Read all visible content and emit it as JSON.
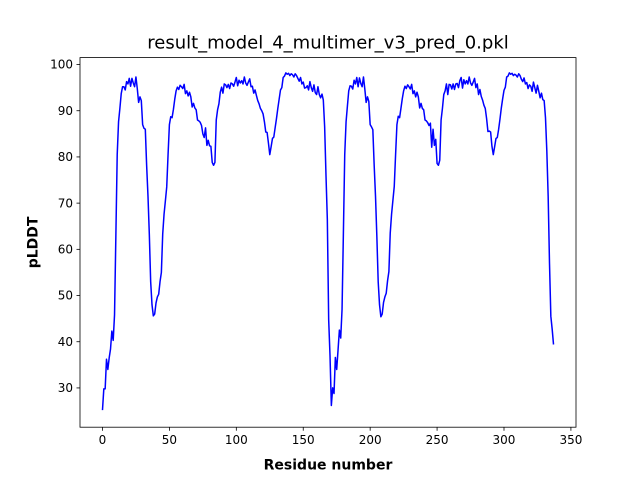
{
  "chart_data": {
    "type": "line",
    "title": "result_model_4_multimer_v3_pred_0.pkl",
    "xlabel": "Residue number",
    "ylabel": "pLDDT",
    "xlim": [
      -16.8,
      353.8
    ],
    "ylim": [
      21.5,
      101.5
    ],
    "xticks": [
      0,
      50,
      100,
      150,
      200,
      250,
      300,
      350
    ],
    "yticks": [
      30,
      40,
      50,
      60,
      70,
      80,
      90,
      100
    ],
    "grid": false,
    "legend": "none",
    "color": "#0000ff",
    "series": [
      {
        "x": [
          0,
          1,
          2,
          3,
          4,
          5,
          6,
          7,
          8,
          9,
          10,
          11,
          12,
          13,
          14,
          15,
          16,
          17,
          18,
          19,
          20,
          21,
          22,
          23,
          24,
          25,
          26,
          27,
          28,
          29,
          30,
          31,
          32,
          33,
          34,
          35,
          36,
          37,
          38,
          39,
          40,
          41,
          42,
          43,
          44,
          45,
          46,
          47,
          48,
          49,
          50,
          51,
          52,
          53,
          54,
          55,
          56,
          57,
          58,
          59,
          60,
          61,
          62,
          63,
          64,
          65,
          66,
          67,
          68,
          69,
          70,
          71,
          72,
          73,
          74,
          75,
          76,
          77,
          78,
          79,
          80,
          81,
          82,
          83,
          84,
          85,
          86,
          87,
          88,
          89,
          90,
          91,
          92,
          93,
          94,
          95,
          96,
          97,
          98,
          99,
          100,
          101,
          102,
          103,
          104,
          105,
          106,
          107,
          108,
          109,
          110,
          111,
          112,
          113,
          114,
          115,
          116,
          117,
          118,
          119,
          120,
          121,
          122,
          123,
          124,
          125,
          126,
          127,
          128,
          129,
          130,
          131,
          132,
          133,
          134,
          135,
          136,
          137,
          138,
          139,
          140,
          141,
          142,
          143,
          144,
          145,
          146,
          147,
          148,
          149,
          150,
          151,
          152,
          153,
          154,
          155,
          156,
          157,
          158,
          159,
          160,
          161,
          162,
          163,
          164,
          165,
          166,
          167,
          168,
          169,
          170,
          171,
          172,
          173,
          174,
          175,
          176,
          177,
          178,
          179,
          180,
          181,
          182,
          183,
          184,
          185,
          186,
          187,
          188,
          189,
          190,
          191,
          192,
          193,
          194,
          195,
          196,
          197,
          198,
          199,
          200,
          201,
          202,
          203,
          204,
          205,
          206,
          207,
          208,
          209,
          210,
          211,
          212,
          213,
          214,
          215,
          216,
          217,
          218,
          219,
          220,
          221,
          222,
          223,
          224,
          225,
          226,
          227,
          228,
          229,
          230,
          231,
          232,
          233,
          234,
          235,
          236,
          237,
          238,
          239,
          240,
          241,
          242,
          243,
          244,
          245,
          246,
          247,
          248,
          249,
          250,
          251,
          252,
          253,
          254,
          255,
          256,
          257,
          258,
          259,
          260,
          261,
          262,
          263,
          264,
          265,
          266,
          267,
          268,
          269,
          270,
          271,
          272,
          273,
          274,
          275,
          276,
          277,
          278,
          279,
          280,
          281,
          282,
          283,
          284,
          285,
          286,
          287,
          288,
          289,
          290,
          291,
          292,
          293,
          294,
          295,
          296,
          297,
          298,
          299,
          300,
          301,
          302,
          303,
          304,
          305,
          306,
          307,
          308,
          309,
          310,
          311,
          312,
          313,
          314,
          315,
          316,
          317,
          318,
          319,
          320,
          321,
          322,
          323,
          324,
          325,
          326,
          327,
          328,
          329,
          330,
          331,
          332,
          333,
          334,
          335,
          336,
          337
        ],
        "values": [
          25.2,
          29.8,
          29.8,
          36.2,
          34.0,
          36.5,
          38.4,
          42.3,
          40.3,
          45.8,
          63.0,
          80.5,
          87.6,
          90.5,
          93.7,
          95.2,
          95.2,
          94.5,
          96.3,
          95.8,
          97.0,
          95.3,
          97.0,
          96.0,
          95.2,
          97.3,
          94.8,
          91.8,
          93.0,
          92.2,
          87.0,
          86.2,
          86.0,
          78.1,
          71.5,
          63.2,
          53.0,
          48.0,
          45.6,
          46.0,
          48.4,
          49.7,
          50.3,
          53.0,
          55.0,
          63.3,
          67.6,
          70.5,
          73.5,
          80.5,
          87.0,
          88.7,
          88.5,
          90.3,
          92.5,
          94.3,
          95.1,
          94.6,
          95.5,
          95.2,
          94.8,
          95.7,
          93.7,
          94.3,
          93.2,
          94.0,
          93.0,
          90.8,
          91.6,
          90.6,
          90.2,
          88.0,
          87.8,
          87.5,
          86.8,
          85.0,
          84.2,
          86.3,
          82.5,
          83.6,
          82.4,
          82.3,
          78.8,
          78.2,
          78.8,
          88.0,
          90.2,
          91.5,
          94.0,
          95.1,
          93.8,
          95.8,
          95.6,
          95.0,
          95.7,
          94.8,
          96.0,
          95.8,
          95.3,
          96.2,
          97.2,
          95.4,
          96.6,
          96.0,
          96.5,
          95.8,
          97.3,
          96.0,
          95.5,
          96.2,
          96.9,
          95.2,
          95.3,
          93.8,
          94.5,
          93.3,
          92.2,
          91.5,
          90.5,
          90.0,
          89.3,
          87.6,
          85.4,
          85.3,
          83.0,
          80.5,
          82.2,
          84.0,
          84.3,
          86.3,
          88.3,
          90.5,
          92.5,
          94.5,
          95.0,
          97.2,
          97.5,
          98.2,
          97.9,
          98.1,
          97.6,
          98.0,
          97.8,
          97.3,
          98.0,
          97.6,
          97.0,
          96.4,
          97.2,
          95.8,
          96.2,
          94.9,
          95.0,
          95.4,
          94.5,
          96.3,
          95.0,
          94.2,
          95.6,
          93.9,
          93.5,
          95.2,
          93.5,
          92.8,
          93.6,
          92.3,
          86.5,
          76.0,
          66.5,
          44.8,
          37.0,
          26.2,
          30.0,
          28.8,
          36.6,
          34.0,
          38.2,
          42.5,
          40.8,
          47.0,
          63.5,
          80.5,
          87.6,
          91.0,
          94.3,
          95.4,
          95.3,
          94.7,
          96.6,
          95.8,
          97.2,
          95.2,
          97.1,
          95.9,
          95.2,
          97.3,
          94.7,
          91.8,
          93.0,
          92.0,
          87.0,
          86.5,
          85.9,
          78.2,
          71.5,
          62.8,
          53.0,
          48.0,
          45.4,
          46.0,
          48.5,
          49.7,
          50.5,
          53.2,
          55.2,
          63.5,
          67.6,
          70.6,
          73.6,
          80.5,
          87.0,
          88.8,
          88.5,
          90.5,
          92.6,
          94.3,
          95.3,
          94.8,
          95.6,
          95.2,
          94.7,
          95.7,
          93.7,
          94.3,
          93.0,
          94.0,
          93.0,
          90.6,
          91.6,
          90.5,
          90.2,
          88.0,
          87.8,
          87.4,
          86.8,
          87.3,
          82.1,
          86.0,
          82.5,
          83.8,
          78.6,
          78.2,
          79.3,
          88.0,
          90.5,
          93.5,
          94.3,
          95.8,
          93.5,
          95.7,
          95.6,
          94.7,
          95.8,
          94.6,
          95.8,
          95.9,
          95.0,
          96.5,
          97.2,
          94.9,
          96.7,
          95.8,
          96.5,
          95.8,
          97.3,
          96.0,
          95.5,
          96.2,
          97.0,
          95.0,
          95.8,
          93.5,
          94.6,
          93.1,
          92.3,
          91.2,
          90.5,
          88.3,
          85.5,
          85.6,
          85.4,
          82.3,
          80.5,
          82.2,
          84.0,
          84.2,
          86.0,
          88.2,
          90.6,
          92.6,
          94.4,
          95.1,
          97.3,
          97.5,
          98.2,
          97.9,
          98.1,
          97.6,
          97.9,
          97.7,
          97.3,
          98.0,
          97.6,
          96.8,
          96.3,
          97.1,
          95.8,
          96.1,
          94.8,
          95.6,
          95.3,
          94.2,
          96.2,
          95.0,
          93.8,
          95.5,
          94.2,
          92.8,
          93.8,
          92.4,
          92.2,
          88.5,
          81.3,
          71.5,
          57.0,
          45.5,
          42.7,
          39.4
        ]
      }
    ]
  }
}
